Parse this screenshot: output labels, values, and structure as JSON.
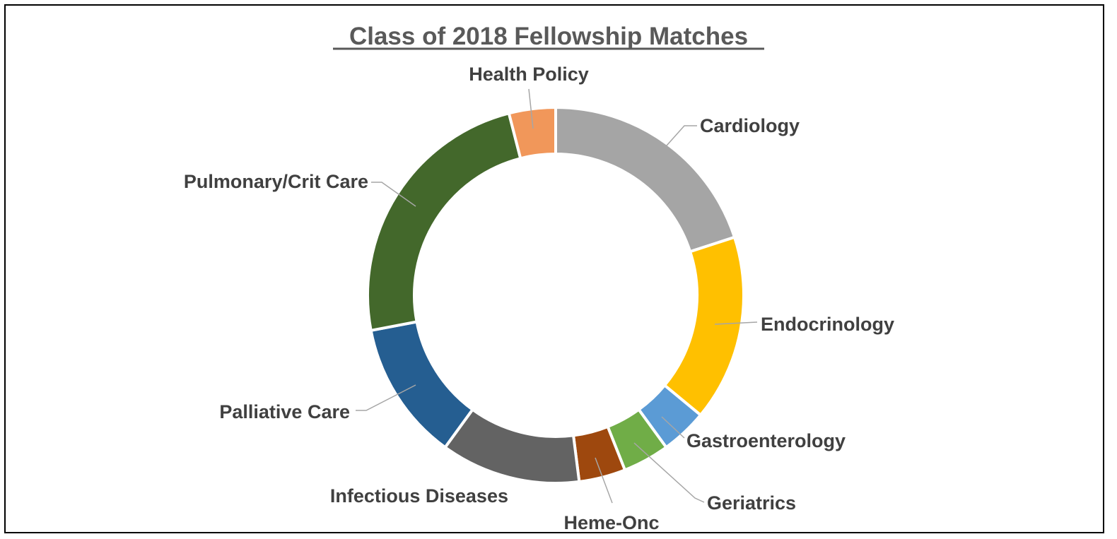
{
  "chart_data": {
    "type": "pie",
    "variant": "donut",
    "title": "Class of 2018 Fellowship Matches",
    "categories": [
      "Cardiology",
      "Endocrinology",
      "Gastroenterology",
      "Geriatrics",
      "Heme-Onc",
      "Infectious Diseases",
      "Palliative Care",
      "Pulmonary/Crit Care",
      "Health Policy"
    ],
    "values": [
      5,
      4,
      1,
      1,
      1,
      3,
      3,
      6,
      1
    ],
    "colors": [
      "#a5a5a5",
      "#ffc000",
      "#5b9bd5",
      "#70ad47",
      "#9e480e",
      "#636363",
      "#255e91",
      "#43682b",
      "#f1975a"
    ],
    "legend": "none",
    "data_labels": "category-name-outside"
  }
}
